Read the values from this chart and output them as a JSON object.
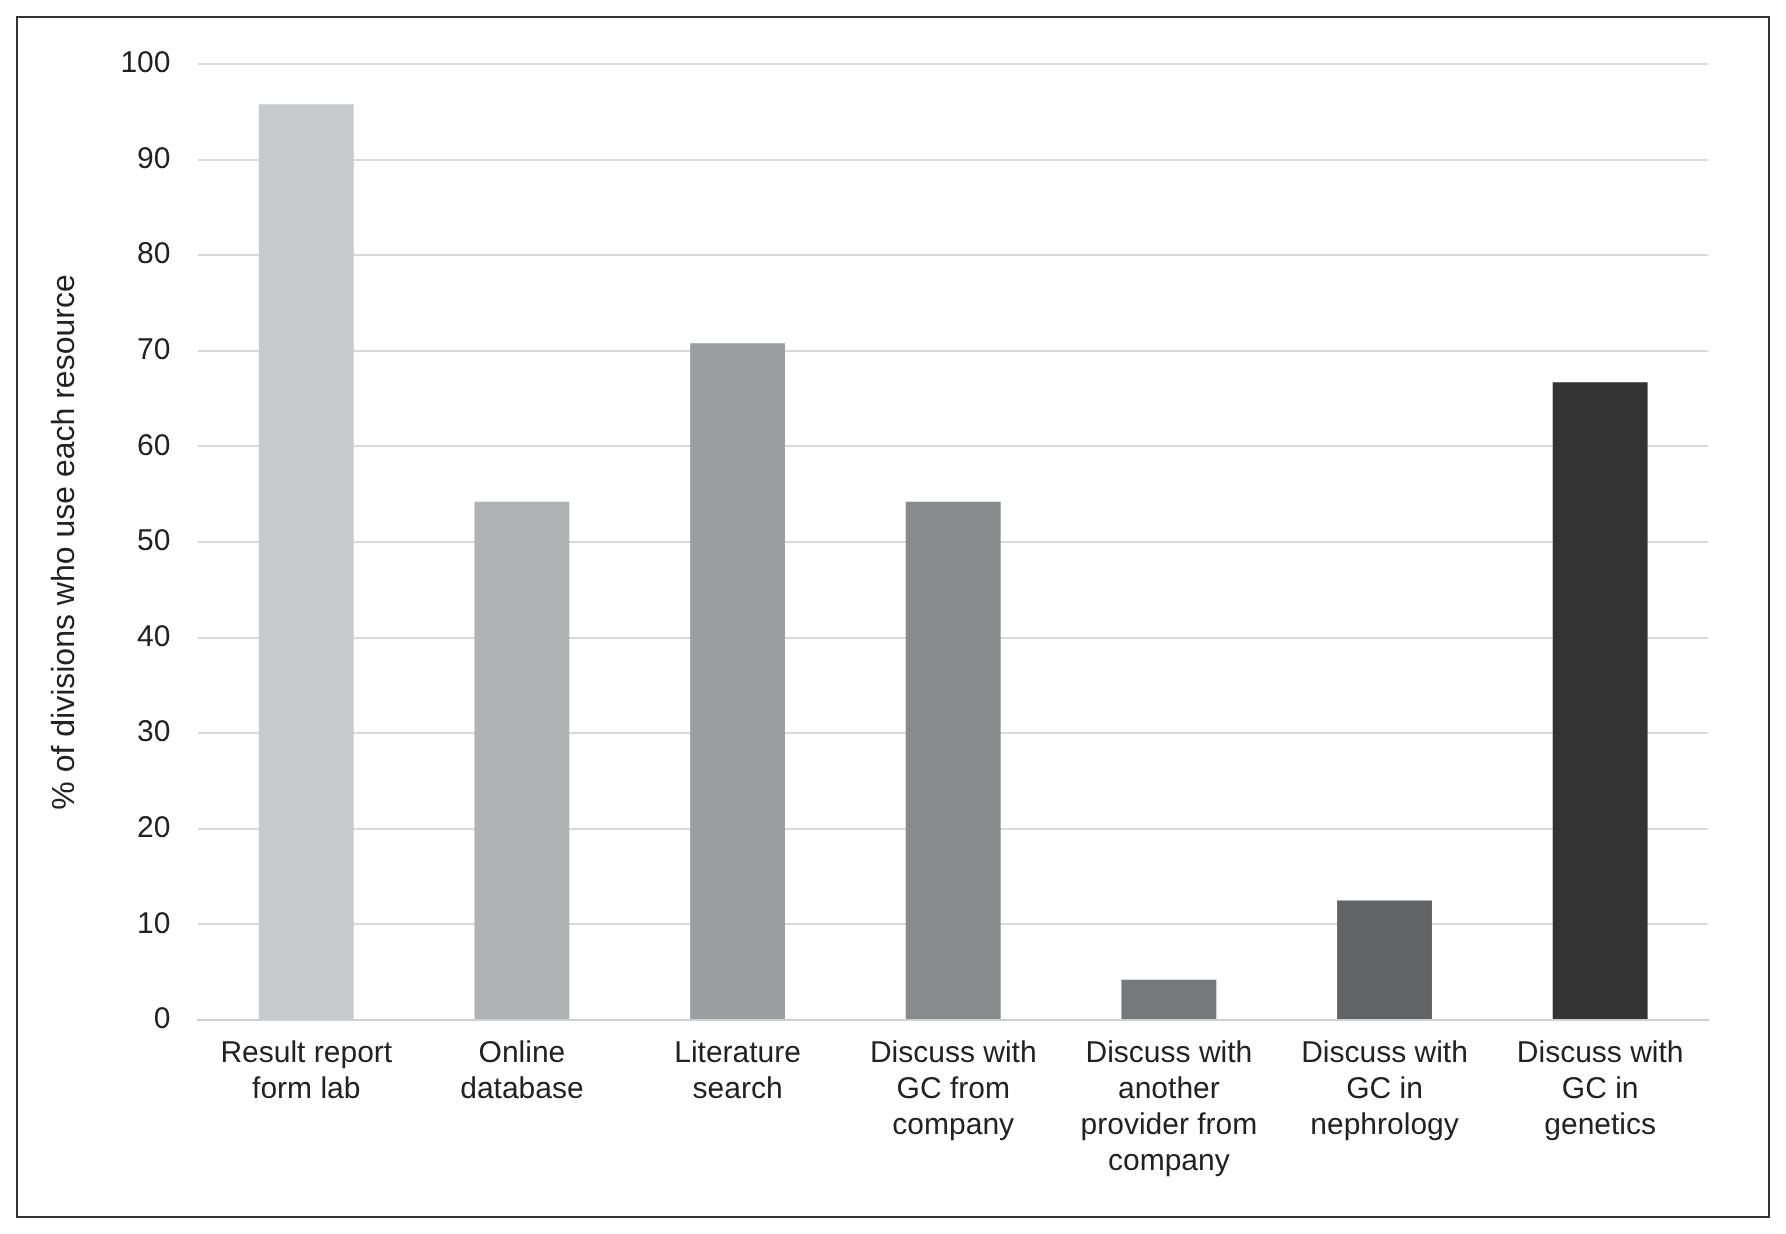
{
  "chart_data": {
    "type": "bar",
    "ylabel": "% of divisions who use each resource",
    "categories": [
      "Result report form lab",
      "Online database",
      "Literature search",
      "Discuss with GC from company",
      "Discuss with another provider from company",
      "Discuss with GC in nephrology",
      "Discuss with GC in genetics"
    ],
    "values": [
      95.8,
      54.2,
      70.8,
      54.2,
      4.2,
      12.5,
      66.7
    ],
    "colors": [
      "#c8c9cb",
      "#b1b2b4",
      "#9c9d9f",
      "#898a8c",
      "#77787a",
      "#626365",
      "#333333"
    ],
    "ylim": [
      0,
      100
    ],
    "yticks": [
      0,
      10,
      20,
      30,
      40,
      50,
      60,
      70,
      80,
      90,
      100
    ],
    "grid": "y"
  }
}
